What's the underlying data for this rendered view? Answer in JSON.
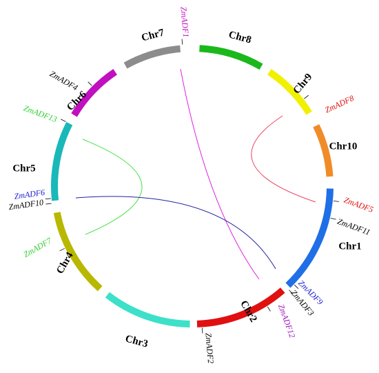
{
  "chromosomes": [
    {
      "name": "Chr1",
      "color": "#1f6fe6"
    },
    {
      "name": "Chr2",
      "color": "#e01010"
    },
    {
      "name": "Chr3",
      "color": "#3de0c8"
    },
    {
      "name": "Chr4",
      "color": "#b8b800"
    },
    {
      "name": "Chr5",
      "color": "#1ab8b8"
    },
    {
      "name": "Chr6",
      "color": "#c010c0"
    },
    {
      "name": "Chr7",
      "color": "#8c8c8c"
    },
    {
      "name": "Chr8",
      "color": "#1ab81a"
    },
    {
      "name": "Chr9",
      "color": "#f0f000"
    },
    {
      "name": "Chr10",
      "color": "#f08c28"
    }
  ],
  "genes": [
    {
      "label": "ZmADF1",
      "color": "#c010c0"
    },
    {
      "label": "ZmADF8",
      "color": "#e01010"
    },
    {
      "label": "ZmADF5",
      "color": "#e01010"
    },
    {
      "label": "ZmADF11",
      "color": "#000000"
    },
    {
      "label": "ZmADF9",
      "color": "#1a1ad0"
    },
    {
      "label": "ZmADF3",
      "color": "#000000"
    },
    {
      "label": "ZmADF12",
      "color": "#a010c0"
    },
    {
      "label": "ZmADF2",
      "color": "#000000"
    },
    {
      "label": "ZmADF7",
      "color": "#30d030"
    },
    {
      "label": "ZmADF10",
      "color": "#000000"
    },
    {
      "label": "ZmADF6",
      "color": "#1a1ad0"
    },
    {
      "label": "ZmADF13",
      "color": "#30d030"
    },
    {
      "label": "ZmADF4",
      "color": "#000000"
    }
  ]
}
